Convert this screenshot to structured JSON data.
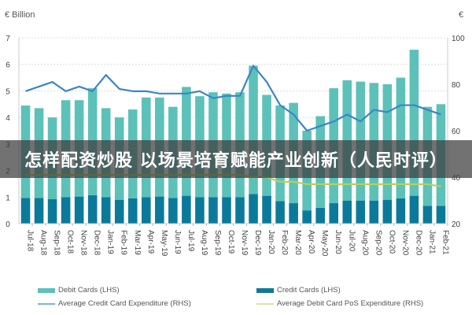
{
  "chart_data": {
    "type": "bar",
    "stacked": true,
    "title": "",
    "left_axis_label": "€ Billion",
    "right_axis_label": "€",
    "xlabel": "",
    "ylabel": "€ Billion",
    "ylim": [
      0,
      7
    ],
    "ylim_right": [
      20,
      100
    ],
    "yticks_left": [
      0,
      1,
      2,
      3,
      4,
      5,
      6,
      7
    ],
    "yticks_right": [
      20,
      40,
      60,
      80,
      100
    ],
    "grid": true,
    "legend_position": "bottom",
    "categories": [
      "Jul-18",
      "Aug-18",
      "Sep-18",
      "Oct-18",
      "Nov-18",
      "Dec-18",
      "Jan-19",
      "Feb-19",
      "Mar-19",
      "Apr-19",
      "May-19",
      "Jun-19",
      "Jul-19",
      "Aug-19",
      "Sep-19",
      "Oct-19",
      "Nov-19",
      "Dec-19",
      "Jan-20",
      "Feb-20",
      "Mar-20",
      "Apr-20",
      "May-20",
      "Jun-20",
      "Jul-20",
      "Aug-20",
      "Sep-20",
      "Oct-20",
      "Nov-20",
      "Dec-20",
      "Jan-21",
      "Feb-21"
    ],
    "series": [
      {
        "name": "Debit Cards (LHS)",
        "kind": "bar",
        "axis": "left",
        "color": "#5cc1b9",
        "values": [
          3.48,
          3.38,
          3.08,
          3.65,
          3.63,
          4.03,
          3.35,
          3.1,
          3.35,
          3.75,
          3.73,
          3.43,
          4.1,
          3.8,
          3.95,
          3.9,
          3.95,
          4.83,
          3.8,
          3.6,
          3.78,
          3.0,
          3.45,
          4.33,
          4.53,
          4.48,
          4.43,
          4.35,
          4.55,
          5.5,
          3.73,
          3.83
        ]
      },
      {
        "name": "Credit Cards (LHS)",
        "kind": "bar",
        "axis": "left",
        "color": "#0b7a9a",
        "values": [
          0.97,
          0.97,
          0.92,
          1.0,
          1.02,
          1.07,
          1.0,
          0.9,
          0.95,
          1.0,
          1.02,
          0.97,
          1.05,
          1.0,
          1.0,
          1.0,
          1.0,
          1.12,
          1.05,
          0.85,
          0.77,
          0.5,
          0.6,
          0.77,
          0.87,
          0.87,
          0.87,
          0.9,
          0.95,
          1.05,
          0.67,
          0.67
        ]
      },
      {
        "name": "Average Credit Card Expenditure (RHS)",
        "kind": "line",
        "axis": "right",
        "color": "#3a86c8",
        "values": [
          77,
          79,
          81,
          77,
          79,
          77,
          84,
          78,
          77,
          77,
          76,
          76,
          76,
          77,
          74,
          75,
          75,
          88,
          81,
          71,
          67,
          60,
          62,
          64,
          67,
          64,
          69,
          68,
          71,
          71,
          69,
          67
        ]
      },
      {
        "name": "Average Debit Card PoS Expenditure (RHS)",
        "kind": "line",
        "axis": "right",
        "color": "#b8cf5a",
        "values": [
          41,
          41,
          41,
          41,
          41,
          41,
          41,
          41,
          41,
          41,
          41,
          41,
          41,
          41,
          41,
          41,
          41,
          40,
          40,
          38,
          38,
          37,
          37,
          37,
          37,
          37,
          37,
          37,
          37,
          37,
          37,
          36
        ]
      }
    ]
  },
  "axes": {
    "left_unit": "€ Billion",
    "right_unit": "€",
    "left_ticks": [
      "0",
      "1",
      "2",
      "3",
      "4",
      "5",
      "6",
      "7"
    ],
    "right_ticks": [
      "20",
      "40",
      "60",
      "80",
      "100"
    ]
  },
  "legend": {
    "debit_cards": "Debit Cards (LHS)",
    "credit_cards": "Credit Cards (LHS)",
    "avg_credit": "Average Credit Card Expenditure (RHS)",
    "avg_debit": "Average Debit Card PoS Expenditure (RHS)"
  },
  "overlay": {
    "banner_text": "怎样配资炒股 以场景培育赋能产业创新（人民时评）"
  },
  "colors": {
    "debit": "#5cc1b9",
    "credit": "#0b7a9a",
    "avg_credit_line": "#3a86c8",
    "avg_debit_line": "#b8cf5a",
    "grid": "#d8d8d8"
  }
}
